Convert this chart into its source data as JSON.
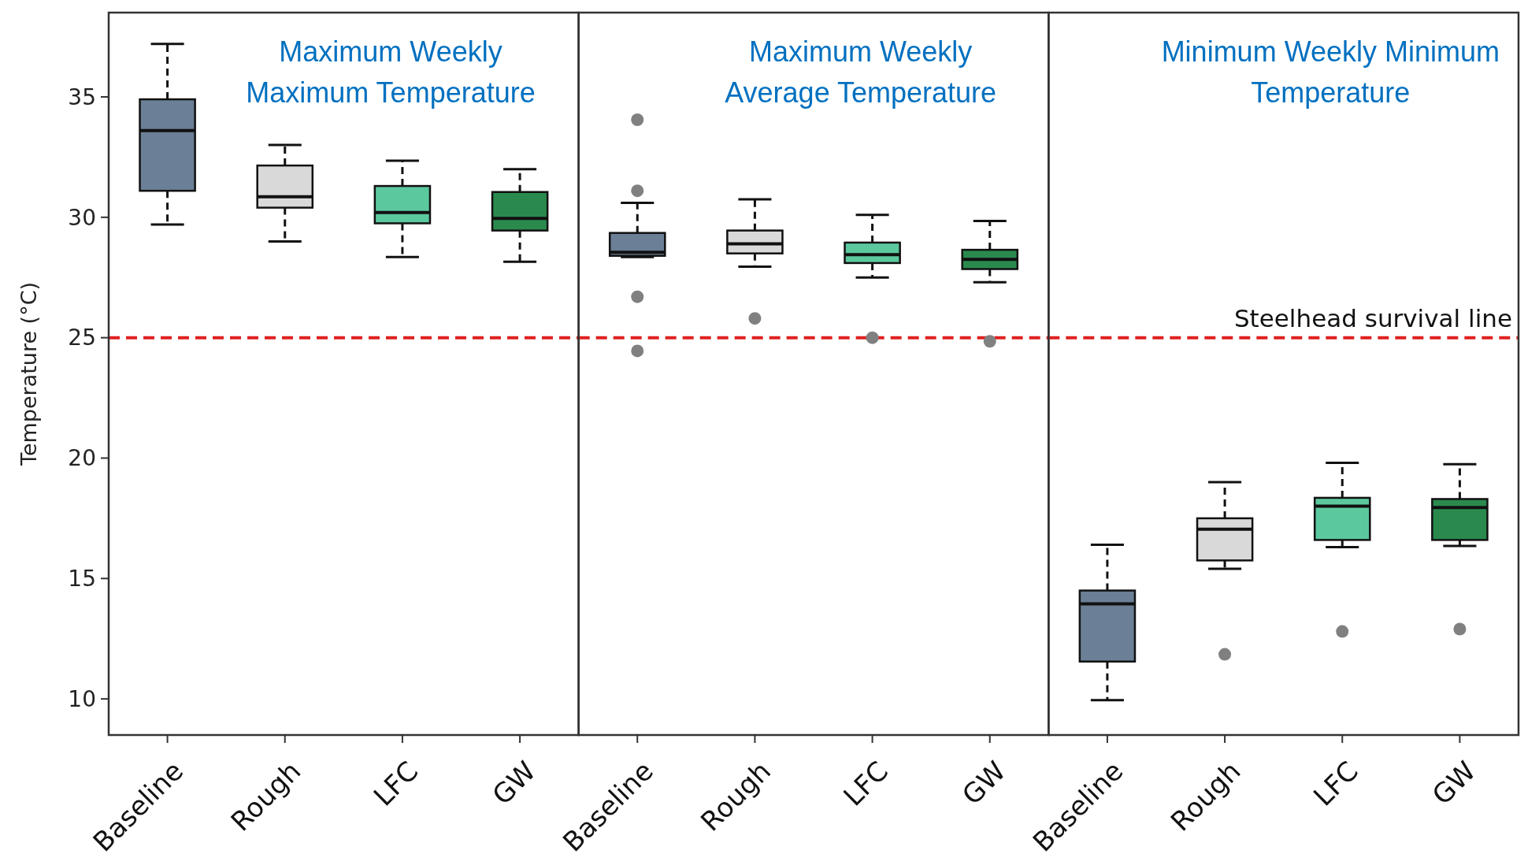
{
  "chart_data": [
    {
      "type": "box",
      "title": "Maximum Weekly\nMaximum Temperature",
      "ylabel": "Temperature (°C)",
      "categories": [
        "Baseline",
        "Rough",
        "LFC",
        "GW"
      ],
      "colors": [
        "#6b7f96",
        "#d9d9d9",
        "#5cc89e",
        "#2a8a4e"
      ],
      "ylim": [
        8.5,
        38.5
      ],
      "yticks": [
        10,
        15,
        20,
        25,
        30,
        35
      ],
      "boxes": [
        {
          "low": 29.7,
          "q1": 31.1,
          "median": 33.6,
          "q3": 34.9,
          "high": 37.2
        },
        {
          "low": 29.0,
          "q1": 30.4,
          "median": 30.85,
          "q3": 32.15,
          "high": 33.0
        },
        {
          "low": 28.35,
          "q1": 29.75,
          "median": 30.2,
          "q3": 31.3,
          "high": 32.35
        },
        {
          "low": 28.15,
          "q1": 29.45,
          "median": 29.95,
          "q3": 31.05,
          "high": 32.0
        }
      ],
      "ref_lines": [
        {
          "axis": "y",
          "value": 25,
          "label": null,
          "color": "#e02020",
          "line_style": "dashed"
        }
      ]
    },
    {
      "type": "box",
      "title": "Maximum Weekly\nAverage Temperature",
      "categories": [
        "Baseline",
        "Rough",
        "LFC",
        "GW"
      ],
      "colors": [
        "#6b7f96",
        "#d9d9d9",
        "#5cc89e",
        "#2a8a4e"
      ],
      "ylim": [
        8.5,
        38.5
      ],
      "yticks": [
        10,
        15,
        20,
        25,
        30,
        35
      ],
      "tick_labels": "x",
      "boxes": [
        {
          "low": 28.35,
          "q1": 28.4,
          "median": 28.55,
          "q3": 29.35,
          "high": 30.6,
          "outliers": [
            34.05,
            31.1,
            26.7,
            24.45
          ]
        },
        {
          "low": 27.95,
          "q1": 28.5,
          "median": 28.9,
          "q3": 29.45,
          "high": 30.75,
          "outliers": [
            25.8
          ]
        },
        {
          "low": 27.5,
          "q1": 28.1,
          "median": 28.45,
          "q3": 28.95,
          "high": 30.1,
          "outliers": [
            25.0
          ]
        },
        {
          "low": 27.3,
          "q1": 27.85,
          "median": 28.25,
          "q3": 28.65,
          "high": 29.85,
          "outliers": [
            24.85
          ]
        }
      ],
      "ref_lines": [
        {
          "axis": "y",
          "value": 25,
          "label": null,
          "color": "#e02020",
          "line_style": "dashed"
        }
      ]
    },
    {
      "type": "box",
      "title": "Minimum Weekly Minimum\nTemperature",
      "categories": [
        "Baseline",
        "Rough",
        "LFC",
        "GW"
      ],
      "colors": [
        "#6b7f96",
        "#d9d9d9",
        "#5cc89e",
        "#2a8a4e"
      ],
      "ylim": [
        8.5,
        38.5
      ],
      "yticks": [
        10,
        15,
        20,
        25,
        30,
        35
      ],
      "tick_labels": "x",
      "boxes": [
        {
          "low": 9.95,
          "q1": 11.55,
          "median": 13.95,
          "q3": 14.5,
          "high": 16.4
        },
        {
          "low": 15.4,
          "q1": 15.75,
          "median": 17.05,
          "q3": 17.5,
          "high": 19.0,
          "outliers": [
            11.85
          ]
        },
        {
          "low": 16.3,
          "q1": 16.6,
          "median": 18.0,
          "q3": 18.35,
          "high": 19.8,
          "outliers": [
            12.8
          ]
        },
        {
          "low": 16.35,
          "q1": 16.6,
          "median": 17.95,
          "q3": 18.3,
          "high": 19.75,
          "outliers": [
            12.9
          ]
        }
      ],
      "ref_lines": [
        {
          "axis": "y",
          "value": 25,
          "label": "Steelhead survival line",
          "color": "#e02020",
          "line_style": "dashed"
        }
      ]
    }
  ]
}
